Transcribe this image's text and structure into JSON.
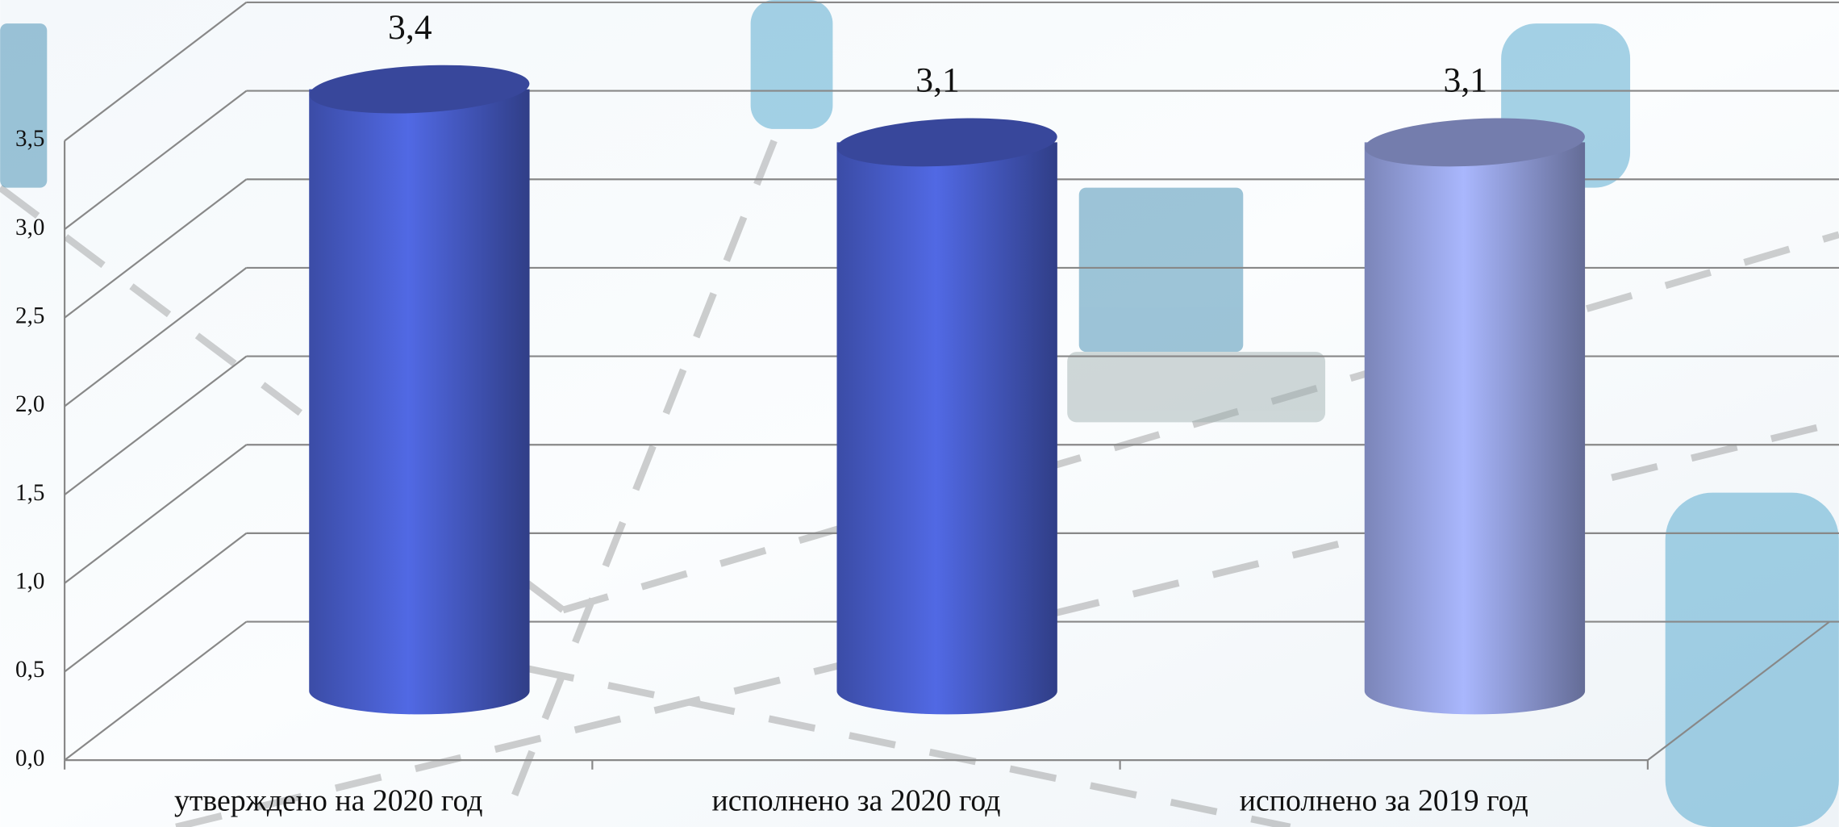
{
  "chart_data": {
    "type": "bar",
    "style": "cylinder-3d",
    "categories": [
      "утверждено на 2020 год",
      "исполнено за 2020 год",
      "исполнено за 2019 год"
    ],
    "values": [
      3.4,
      3.1,
      3.1
    ],
    "value_labels": [
      "3,4",
      "3,1",
      "3,1"
    ],
    "colors": [
      "#4a5fcf",
      "#4a5fcf",
      "#9aa6e6"
    ],
    "ylim": [
      0,
      3.5
    ],
    "yticks": [
      {
        "value": 0,
        "label": "0,0"
      },
      {
        "value": 0.5,
        "label": "0,5"
      },
      {
        "value": 1,
        "label": "1,0"
      },
      {
        "value": 1.5,
        "label": "1,5"
      },
      {
        "value": 2,
        "label": "2,0"
      },
      {
        "value": 2.5,
        "label": "2,5"
      },
      {
        "value": 3,
        "label": "3,0"
      },
      {
        "value": 3.5,
        "label": "3,5"
      }
    ],
    "grid": true
  }
}
